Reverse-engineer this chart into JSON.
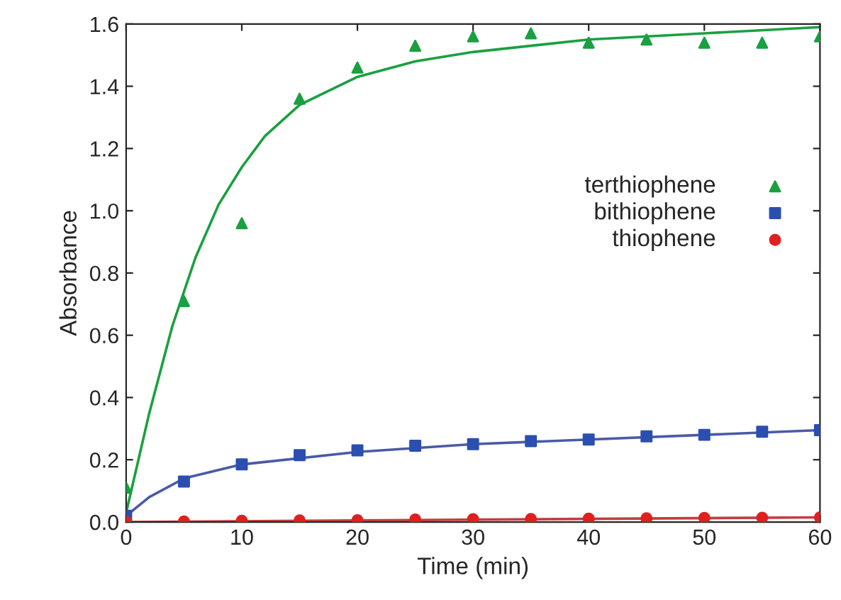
{
  "chart_data": {
    "type": "scatter",
    "xlabel": "Time (min)",
    "ylabel": "Absorbance",
    "xlim": [
      0,
      60
    ],
    "ylim": [
      0,
      1.6
    ],
    "xticks": [
      0,
      10,
      20,
      30,
      40,
      50,
      60
    ],
    "yticks": [
      {
        "value": 0,
        "label": "0.0"
      },
      {
        "value": 0.2,
        "label": "0.2"
      },
      {
        "value": 0.4,
        "label": "0.4"
      },
      {
        "value": 0.6,
        "label": "0.6"
      },
      {
        "value": 0.8,
        "label": "0.8"
      },
      {
        "value": 1.0,
        "label": "1.0"
      },
      {
        "value": 1.2,
        "label": "1.2"
      },
      {
        "value": 1.4,
        "label": "1.4"
      },
      {
        "value": 1.6,
        "label": "1.6"
      }
    ],
    "legend": "right",
    "grid": false,
    "series": [
      {
        "name": "terthiophene",
        "marker": "triangle",
        "color": "#1aa040",
        "x": [
          0,
          5,
          10,
          15,
          20,
          25,
          30,
          35,
          40,
          45,
          50,
          55,
          60
        ],
        "values": [
          0.11,
          0.71,
          0.96,
          1.36,
          1.46,
          1.53,
          1.56,
          1.57,
          1.54,
          1.55,
          1.54,
          1.54,
          1.56
        ]
      },
      {
        "name": "bithiophene",
        "marker": "square",
        "color": "#2a4fb0",
        "x": [
          0,
          5,
          10,
          15,
          20,
          25,
          30,
          35,
          40,
          45,
          50,
          55,
          60
        ],
        "values": [
          0.02,
          0.13,
          0.185,
          0.215,
          0.23,
          0.245,
          0.25,
          0.26,
          0.265,
          0.275,
          0.28,
          0.29,
          0.295
        ]
      },
      {
        "name": "thiophene",
        "marker": "circle",
        "color": "#e02020",
        "x": [
          0,
          5,
          10,
          15,
          20,
          25,
          30,
          35,
          40,
          45,
          50,
          55,
          60
        ],
        "values": [
          0.0,
          0.002,
          0.004,
          0.005,
          0.006,
          0.008,
          0.009,
          0.01,
          0.011,
          0.012,
          0.013,
          0.014,
          0.015
        ]
      },
      {
        "type": "line",
        "color": "#1aa040",
        "x": [
          0,
          2,
          4,
          6,
          8,
          10,
          12,
          15,
          20,
          25,
          30,
          40,
          50,
          60
        ],
        "values": [
          0.03,
          0.35,
          0.63,
          0.85,
          1.02,
          1.14,
          1.24,
          1.34,
          1.43,
          1.48,
          1.51,
          1.55,
          1.57,
          1.59
        ]
      },
      {
        "type": "line",
        "color": "#4a5aa8",
        "x": [
          0,
          2,
          5,
          10,
          20,
          30,
          40,
          50,
          60
        ],
        "values": [
          0.02,
          0.08,
          0.14,
          0.185,
          0.225,
          0.25,
          0.265,
          0.28,
          0.295
        ]
      },
      {
        "type": "line",
        "color": "#c04040",
        "x": [
          0,
          20,
          40,
          60
        ],
        "values": [
          0.0,
          0.005,
          0.01,
          0.015
        ]
      }
    ]
  }
}
